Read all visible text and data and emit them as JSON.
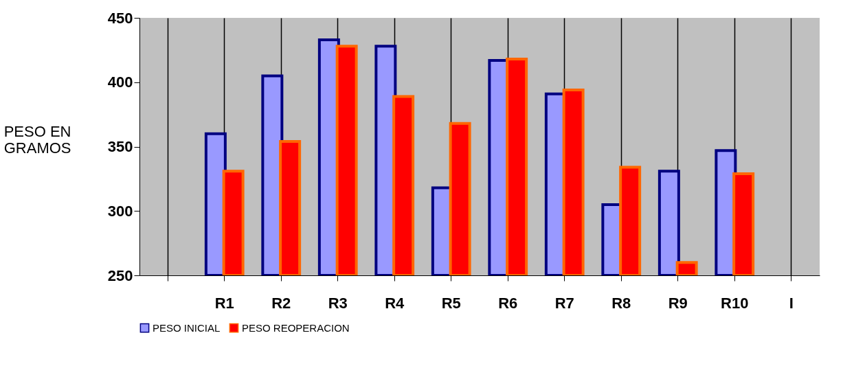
{
  "chart_data": {
    "type": "bar",
    "ylabel": "PESO EN GRAMOS",
    "categories": [
      null,
      "R1",
      "R2",
      "R3",
      "R4",
      "R5",
      "R6",
      "R7",
      "R8",
      "R9",
      "R10",
      "I"
    ],
    "series": [
      {
        "name": "PESO INICIAL",
        "color": "#9999ff",
        "values": [
          null,
          360,
          405,
          433,
          428,
          318,
          417,
          391,
          305,
          331,
          347,
          null
        ]
      },
      {
        "name": "PESO REOPERACION",
        "color": "#ff0000",
        "values": [
          null,
          331,
          354,
          428,
          389,
          368,
          418,
          394,
          334,
          260,
          329,
          null
        ]
      }
    ],
    "ylim": [
      250,
      450
    ],
    "yticks": [
      250,
      300,
      350,
      400,
      450
    ],
    "grid": "x",
    "legend": "bottom"
  }
}
